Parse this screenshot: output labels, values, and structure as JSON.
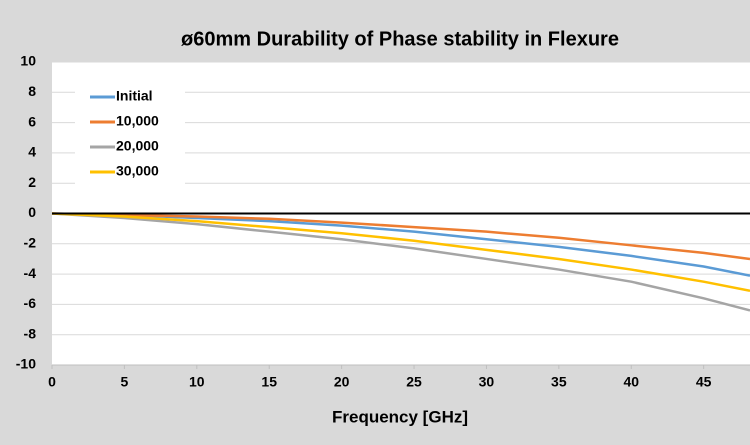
{
  "chart_data": {
    "type": "line",
    "title": "ø60mm Durability of Phase stability in Flexure",
    "x_label": "Frequency [GHz]",
    "x": [
      0,
      5,
      10,
      15,
      20,
      25,
      30,
      35,
      40,
      45,
      48.2
    ],
    "series": [
      {
        "name": "Initial",
        "color": "#5b9bd5",
        "values": [
          0,
          -0.1,
          -0.3,
          -0.5,
          -0.8,
          -1.2,
          -1.7,
          -2.2,
          -2.8,
          -3.5,
          -4.1
        ]
      },
      {
        "name": "10,000",
        "color": "#ed7d31",
        "values": [
          0,
          -0.1,
          -0.2,
          -0.35,
          -0.6,
          -0.9,
          -1.2,
          -1.6,
          -2.1,
          -2.6,
          -3.0
        ]
      },
      {
        "name": "20,000",
        "color": "#a5a5a5",
        "values": [
          0,
          -0.3,
          -0.7,
          -1.2,
          -1.7,
          -2.3,
          -3.0,
          -3.7,
          -4.5,
          -5.6,
          -6.4
        ]
      },
      {
        "name": "30,000",
        "color": "#ffc000",
        "values": [
          0,
          -0.2,
          -0.5,
          -0.9,
          -1.3,
          -1.8,
          -2.4,
          -3.0,
          -3.7,
          -4.5,
          -5.1
        ]
      }
    ],
    "xlim": [
      0,
      48.2
    ],
    "xticks": [
      0,
      5,
      10,
      15,
      20,
      25,
      30,
      35,
      40,
      45
    ],
    "ylim": [
      -10,
      10
    ],
    "yticks": [
      -10,
      -8,
      -6,
      -4,
      -2,
      0,
      2,
      4,
      6,
      8,
      10
    ],
    "grid": true,
    "zero_line": true,
    "legend": "upper left"
  }
}
